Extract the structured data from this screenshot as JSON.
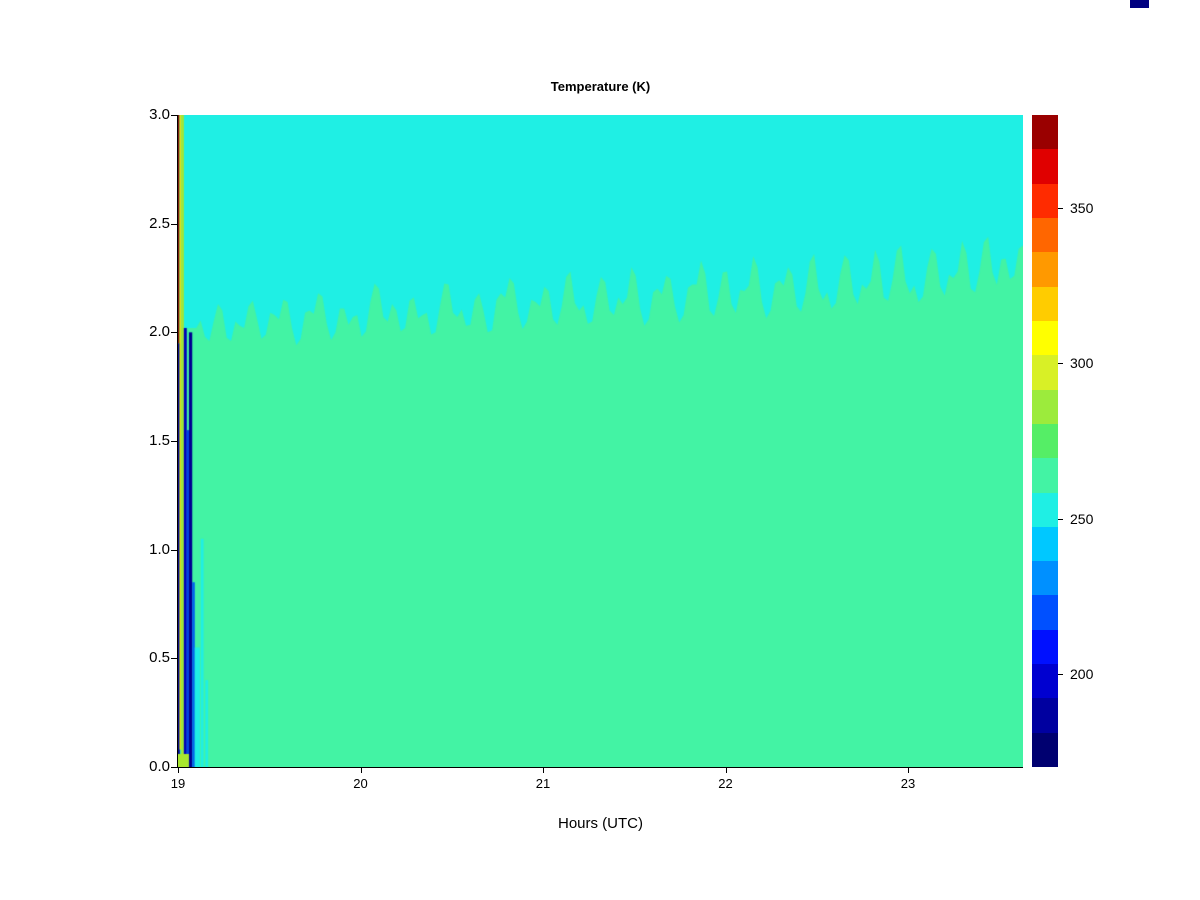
{
  "corner_swatch_color": "#000080",
  "chart_data": {
    "type": "heatmap",
    "title": "Temperature (K)",
    "xlabel": "Hours (UTC)",
    "ylabel": "",
    "x_range": [
      19.0,
      23.63
    ],
    "y_range": [
      0.0,
      3.0
    ],
    "grid": false,
    "x_ticks": [
      {
        "label": "19",
        "value": 19
      },
      {
        "label": "20",
        "value": 20
      },
      {
        "label": "21",
        "value": 21
      },
      {
        "label": "22",
        "value": 22
      },
      {
        "label": "23",
        "value": 23
      }
    ],
    "y_ticks": [
      {
        "label": "0.0",
        "value": 0.0
      },
      {
        "label": "0.5",
        "value": 0.5
      },
      {
        "label": "1.0",
        "value": 1.0
      },
      {
        "label": "1.5",
        "value": 1.5
      },
      {
        "label": "2.0",
        "value": 2.0
      },
      {
        "label": "2.5",
        "value": 2.5
      },
      {
        "label": "3.0",
        "value": 3.0
      }
    ],
    "colorbar": {
      "range": [
        170,
        380
      ],
      "ticks": [
        {
          "label": "200",
          "value": 200
        },
        {
          "label": "250",
          "value": 250
        },
        {
          "label": "300",
          "value": 300
        },
        {
          "label": "350",
          "value": 350
        }
      ],
      "colors_bottom_to_top": [
        "#000070",
        "#0000A0",
        "#0000D0",
        "#0010FF",
        "#0050FF",
        "#0090FF",
        "#00C8FF",
        "#1FEFE4",
        "#43F3A4",
        "#55EE66",
        "#9CEB3C",
        "#D8F026",
        "#FFFF00",
        "#FFCC00",
        "#FF9900",
        "#FF6600",
        "#FF2B00",
        "#E00000",
        "#9A0000"
      ]
    },
    "field": {
      "description": "Filled-contour temperature field: a lower region near 262 K (green) beneath a noisy boundary at 2.0-2.4 km that rises slowly with time, an upper region near 248 K (cyan) above it, and a narrow column of extreme values (about 180-375 K) at the left edge near 19.0 h.",
      "lower_region_value_K": 262,
      "upper_region_value_K": 248,
      "lower_region_color": "#43F3A4",
      "upper_region_color": "#1FEFE4",
      "boundary_x_start": 19.1,
      "boundary_x_end": 23.63,
      "boundary_heights_km": [
        2.02,
        1.98,
        2.05,
        2.1,
        1.96,
        2.03,
        2.12,
        2.06,
        1.99,
        2.08,
        2.15,
        2.02,
        1.97,
        2.1,
        2.18,
        2.04,
        2.0,
        2.11,
        2.07,
        1.98,
        2.14,
        2.2,
        2.05,
        2.1,
        2.02,
        2.16,
        2.08,
        1.99,
        2.12,
        2.22,
        2.07,
        2.03,
        2.15,
        2.1,
        2.01,
        2.18,
        2.25,
        2.09,
        2.05,
        2.14,
        2.21,
        2.06,
        2.12,
        2.28,
        2.1,
        2.04,
        2.17,
        2.23,
        2.08,
        2.13,
        2.3,
        2.11,
        2.06,
        2.2,
        2.26,
        2.12,
        2.08,
        2.22,
        2.33,
        2.1,
        2.16,
        2.28,
        2.09,
        2.19,
        2.35,
        2.14,
        2.1,
        2.24,
        2.3,
        2.12,
        2.18,
        2.36,
        2.15,
        2.11,
        2.27,
        2.33,
        2.13,
        2.2,
        2.38,
        2.16,
        2.24,
        2.4,
        2.18,
        2.14,
        2.3,
        2.36,
        2.17,
        2.25,
        2.42,
        2.2,
        2.28,
        2.44,
        2.22,
        2.34,
        2.26,
        2.4
      ],
      "left_edge_stripes": [
        {
          "x0": 19.0,
          "x1": 19.01,
          "y0": 0.0,
          "y1": 1.95,
          "value_K": 182,
          "color": "#000090"
        },
        {
          "x0": 19.0,
          "x1": 19.008,
          "y0": 1.95,
          "y1": 3.0,
          "value_K": 375,
          "color": "#7A0A0A"
        },
        {
          "x0": 19.008,
          "x1": 19.018,
          "y0": 0.08,
          "y1": 3.0,
          "value_K": 303,
          "color": "#E8E414"
        },
        {
          "x0": 19.018,
          "x1": 19.032,
          "y0": 0.04,
          "y1": 3.0,
          "value_K": 288,
          "color": "#A8E62E"
        },
        {
          "x0": 19.032,
          "x1": 19.048,
          "y0": 0.0,
          "y1": 2.02,
          "value_K": 186,
          "color": "#0000B8"
        },
        {
          "x0": 19.048,
          "x1": 19.06,
          "y0": 0.0,
          "y1": 1.55,
          "value_K": 210,
          "color": "#0040E8"
        },
        {
          "x0": 19.06,
          "x1": 19.078,
          "y0": 0.0,
          "y1": 2.0,
          "value_K": 182,
          "color": "#000090"
        },
        {
          "x0": 19.078,
          "x1": 19.092,
          "y0": 0.0,
          "y1": 0.85,
          "value_K": 220,
          "color": "#0060F0"
        },
        {
          "x0": 19.092,
          "x1": 19.12,
          "y0": 0.0,
          "y1": 0.55,
          "value_K": 248,
          "color": "#1FEFE4"
        },
        {
          "x0": 19.125,
          "x1": 19.14,
          "y0": 0.0,
          "y1": 1.05,
          "value_K": 248,
          "color": "#1FEFE4"
        },
        {
          "x0": 19.15,
          "x1": 19.165,
          "y0": 0.0,
          "y1": 0.4,
          "value_K": 248,
          "color": "#1FEFE4"
        },
        {
          "x0": 19.0,
          "x1": 19.06,
          "y0": 0.0,
          "y1": 0.06,
          "value_K": 288,
          "color": "#A8E62E"
        }
      ]
    }
  }
}
